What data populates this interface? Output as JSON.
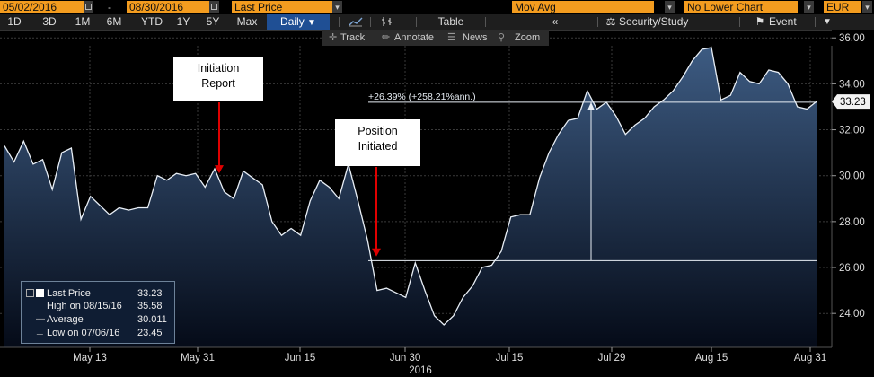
{
  "toolbar": {
    "date_start": "05/02/2016",
    "date_sep": "-",
    "date_end": "08/30/2016",
    "field": "Last Price",
    "study": "Mov Avg",
    "lower_chart": "No Lower Chart",
    "currency": "EUR"
  },
  "range_tabs": [
    "1D",
    "3D",
    "1M",
    "6M",
    "YTD",
    "1Y",
    "5Y",
    "Max"
  ],
  "period": "Daily",
  "view_buttons": {
    "table": "Table",
    "security_study": "Security/Study",
    "event": "Event"
  },
  "sub_tools": {
    "track": "Track",
    "annotate": "Annotate",
    "news": "News",
    "zoom": "Zoom"
  },
  "colors": {
    "toolbar_orange": "#f39c1f",
    "selected_blue": "#1f4f94",
    "area_fill_top": "#3d5b82",
    "area_fill_bottom": "#050b18",
    "line": "#e8eef5",
    "arrow": "#e00000"
  },
  "chart_data": {
    "type": "area",
    "series": [
      {
        "name": "Last Price",
        "values": [
          31.3,
          30.6,
          31.5,
          30.5,
          30.7,
          29.4,
          31.0,
          31.2,
          28.1,
          29.1,
          28.7,
          28.3,
          28.6,
          28.5,
          28.6,
          28.6,
          30.0,
          29.8,
          30.1,
          30.0,
          30.1,
          29.5,
          30.3,
          29.3,
          29.0,
          30.2,
          29.9,
          29.6,
          28.0,
          27.4,
          27.7,
          27.4,
          28.9,
          29.8,
          29.5,
          29.0,
          30.5,
          28.9,
          27.2,
          25.0,
          25.1,
          24.9,
          24.7,
          26.2,
          25.0,
          23.9,
          23.5,
          23.9,
          24.7,
          25.2,
          26.0,
          26.1,
          26.7,
          28.2,
          28.3,
          28.3,
          29.9,
          31.0,
          31.8,
          32.4,
          32.5,
          33.7,
          32.9,
          33.2,
          32.6,
          31.8,
          32.2,
          32.5,
          33.0,
          33.3,
          33.7,
          34.3,
          35.0,
          35.5,
          35.58,
          33.3,
          33.5,
          34.5,
          34.1,
          34.0,
          34.6,
          34.5,
          34.0,
          33.0,
          32.9,
          33.23
        ]
      }
    ],
    "x_tick_labels": [
      "May 13",
      "May 31",
      "Jun 15",
      "Jun 30",
      "Jul 15",
      "Jul 29",
      "Aug 15",
      "Aug 31"
    ],
    "x_sub_label": "2016",
    "y_ticks": [
      "24.00",
      "26.00",
      "28.00",
      "30.00",
      "32.00",
      "34.00",
      "36.00"
    ],
    "ylim": [
      22.6,
      36.4
    ],
    "grid": true,
    "last_value_label": "33.23",
    "annotations": {
      "initiation": {
        "text": [
          "Initiation",
          "Report"
        ],
        "arrow_at_value": 30.1
      },
      "position": {
        "text": [
          "Position",
          "Initiated"
        ],
        "arrow_at_value": 26.4
      },
      "measure": {
        "text": "+26.39% (+258.21%ann.)",
        "from_value": 26.3,
        "to_value": 33.2
      }
    },
    "legend": [
      {
        "icon": "square",
        "label": "Last Price",
        "value": "33.23"
      },
      {
        "icon": "high",
        "label": "High on 08/15/16",
        "value": "35.58"
      },
      {
        "icon": "avg",
        "label": "Average",
        "value": "30.011"
      },
      {
        "icon": "low",
        "label": "Low on 07/06/16",
        "value": "23.45"
      }
    ]
  }
}
